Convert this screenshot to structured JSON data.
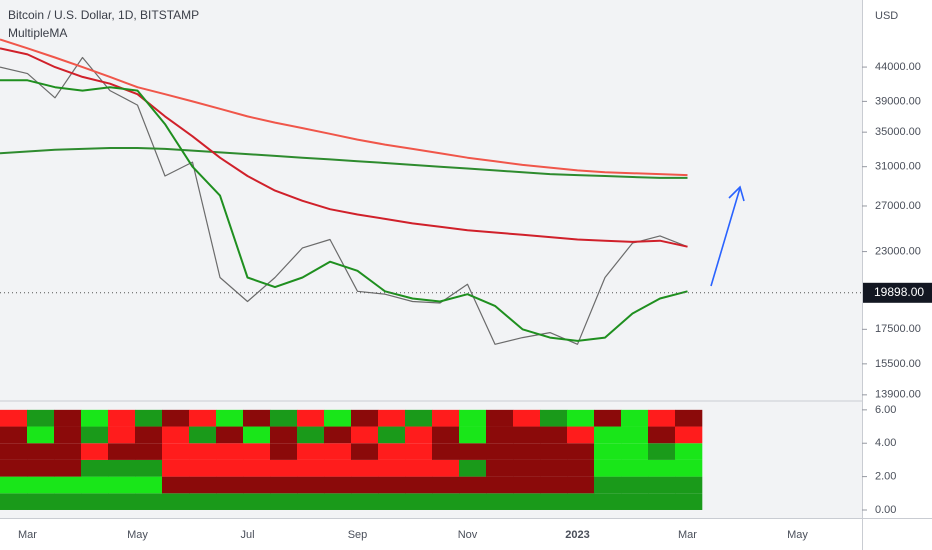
{
  "chart_data": [
    {
      "type": "line",
      "title": "Bitcoin / U.S. Dollar, 1D, BITSTAMP",
      "subtitle": "MultipleMA",
      "y_axis_label": "USD",
      "log_scale": true,
      "categories": [
        null,
        "Mar",
        null,
        null,
        null,
        "May",
        null,
        null,
        null,
        "Jul",
        null,
        null,
        null,
        "Sep",
        null,
        null,
        null,
        "Nov",
        null,
        null,
        null,
        "2023",
        null,
        null,
        null,
        "Mar",
        null,
        null,
        null,
        "May"
      ],
      "series": [
        {
          "color": "#6b6b6b",
          "values": [
            44000,
            43000,
            39500,
            45500,
            40500,
            38500,
            30000,
            31500,
            21000,
            19300,
            21000,
            23300,
            24000,
            20000,
            19800,
            19300,
            19200,
            20500,
            16600,
            17000,
            17300,
            16600,
            21000,
            23700,
            24300,
            23400,
            null,
            null,
            null,
            null
          ]
        },
        {
          "color": "#f0564a",
          "values": [
            48500,
            47000,
            45500,
            44000,
            42500,
            41000,
            40000,
            39000,
            38000,
            37000,
            36200,
            35500,
            34800,
            34100,
            33500,
            33000,
            32500,
            32000,
            31600,
            31200,
            30900,
            30600,
            30400,
            30300,
            30200,
            30100,
            null,
            null,
            null,
            null
          ]
        },
        {
          "color": "#2e8b2e",
          "values": [
            32500,
            32700,
            32900,
            33000,
            33100,
            33100,
            33000,
            32800,
            32600,
            32400,
            32200,
            32000,
            31800,
            31600,
            31400,
            31200,
            31000,
            30800,
            30600,
            30400,
            30200,
            30100,
            30000,
            29900,
            29800,
            29800,
            null,
            null,
            null,
            null
          ]
        },
        {
          "color": "#d0202a",
          "values": [
            47000,
            46000,
            44000,
            42500,
            41500,
            40000,
            37000,
            34500,
            32000,
            30000,
            28500,
            27500,
            26700,
            26200,
            25800,
            25400,
            25100,
            24800,
            24600,
            24400,
            24200,
            24000,
            23900,
            23800,
            23900,
            23400,
            null,
            null,
            null,
            null
          ]
        },
        {
          "color": "#1f8f1f",
          "values": [
            42000,
            42000,
            41000,
            40500,
            41000,
            40500,
            36000,
            31000,
            28000,
            21000,
            20300,
            21000,
            22200,
            21500,
            20000,
            19500,
            19300,
            19800,
            19000,
            17500,
            17000,
            16800,
            17000,
            18500,
            19500,
            20000,
            null,
            null,
            null,
            null
          ]
        }
      ],
      "last_price": {
        "value": 19898,
        "label": "19898.00"
      },
      "ylim": [
        13650,
        55700
      ],
      "yticks": [
        {
          "value": 44000,
          "label": "44000.00"
        },
        {
          "value": 39000,
          "label": "39000.00"
        },
        {
          "value": 35000,
          "label": "35000.00"
        },
        {
          "value": 31000,
          "label": "31000.00"
        },
        {
          "value": 27000,
          "label": "27000.00"
        },
        {
          "value": 23000,
          "label": "23000.00"
        },
        {
          "value": 17500,
          "label": "17500.00"
        },
        {
          "value": 15500,
          "label": "15500.00"
        },
        {
          "value": 13900,
          "label": "13900.00"
        }
      ]
    },
    {
      "type": "heatmap",
      "color_scale": [
        {
          "value": 2,
          "color": "#19e619"
        },
        {
          "value": 1,
          "color": "#1a9a1a"
        },
        {
          "value": -1,
          "color": "#8b0a0a"
        },
        {
          "value": -2,
          "color": "#ff1c1c"
        }
      ],
      "rows": [
        [
          1,
          1,
          1,
          1,
          1,
          1,
          1,
          1,
          1,
          1,
          1,
          1,
          1,
          1,
          1,
          1,
          1,
          1,
          1,
          1,
          1,
          1,
          1,
          1,
          1,
          1
        ],
        [
          2,
          2,
          2,
          2,
          2,
          2,
          -1,
          -1,
          -1,
          -1,
          -1,
          -1,
          -1,
          -1,
          -1,
          -1,
          -1,
          -1,
          -1,
          -1,
          -1,
          -1,
          1,
          1,
          1,
          1
        ],
        [
          -1,
          -1,
          -1,
          1,
          1,
          1,
          -2,
          -2,
          -2,
          -2,
          -2,
          -2,
          -2,
          -2,
          -2,
          -2,
          -2,
          1,
          -1,
          -1,
          -1,
          -1,
          2,
          2,
          2,
          2
        ],
        [
          -1,
          -1,
          -1,
          -2,
          -1,
          -1,
          -2,
          -2,
          -2,
          -2,
          -1,
          -2,
          -2,
          -1,
          -2,
          -2,
          -1,
          -1,
          -1,
          -1,
          -1,
          -1,
          2,
          2,
          1,
          2
        ],
        [
          -1,
          2,
          -1,
          1,
          -2,
          -1,
          -2,
          1,
          -1,
          2,
          -1,
          1,
          -1,
          -2,
          1,
          -2,
          -1,
          2,
          -1,
          -1,
          -1,
          -2,
          2,
          2,
          -1,
          -2
        ],
        [
          -2,
          1,
          -1,
          2,
          -2,
          1,
          -1,
          -2,
          2,
          -1,
          1,
          -2,
          2,
          -1,
          -2,
          1,
          -2,
          2,
          -1,
          -2,
          1,
          2,
          -1,
          2,
          -2,
          -1
        ]
      ],
      "ylim": [
        -0.48,
        6.53
      ],
      "yticks": [
        {
          "value": 6,
          "label": "6.00"
        },
        {
          "value": 4,
          "label": "4.00"
        },
        {
          "value": 2,
          "label": "2.00"
        },
        {
          "value": 0,
          "label": "0.00"
        }
      ]
    }
  ]
}
